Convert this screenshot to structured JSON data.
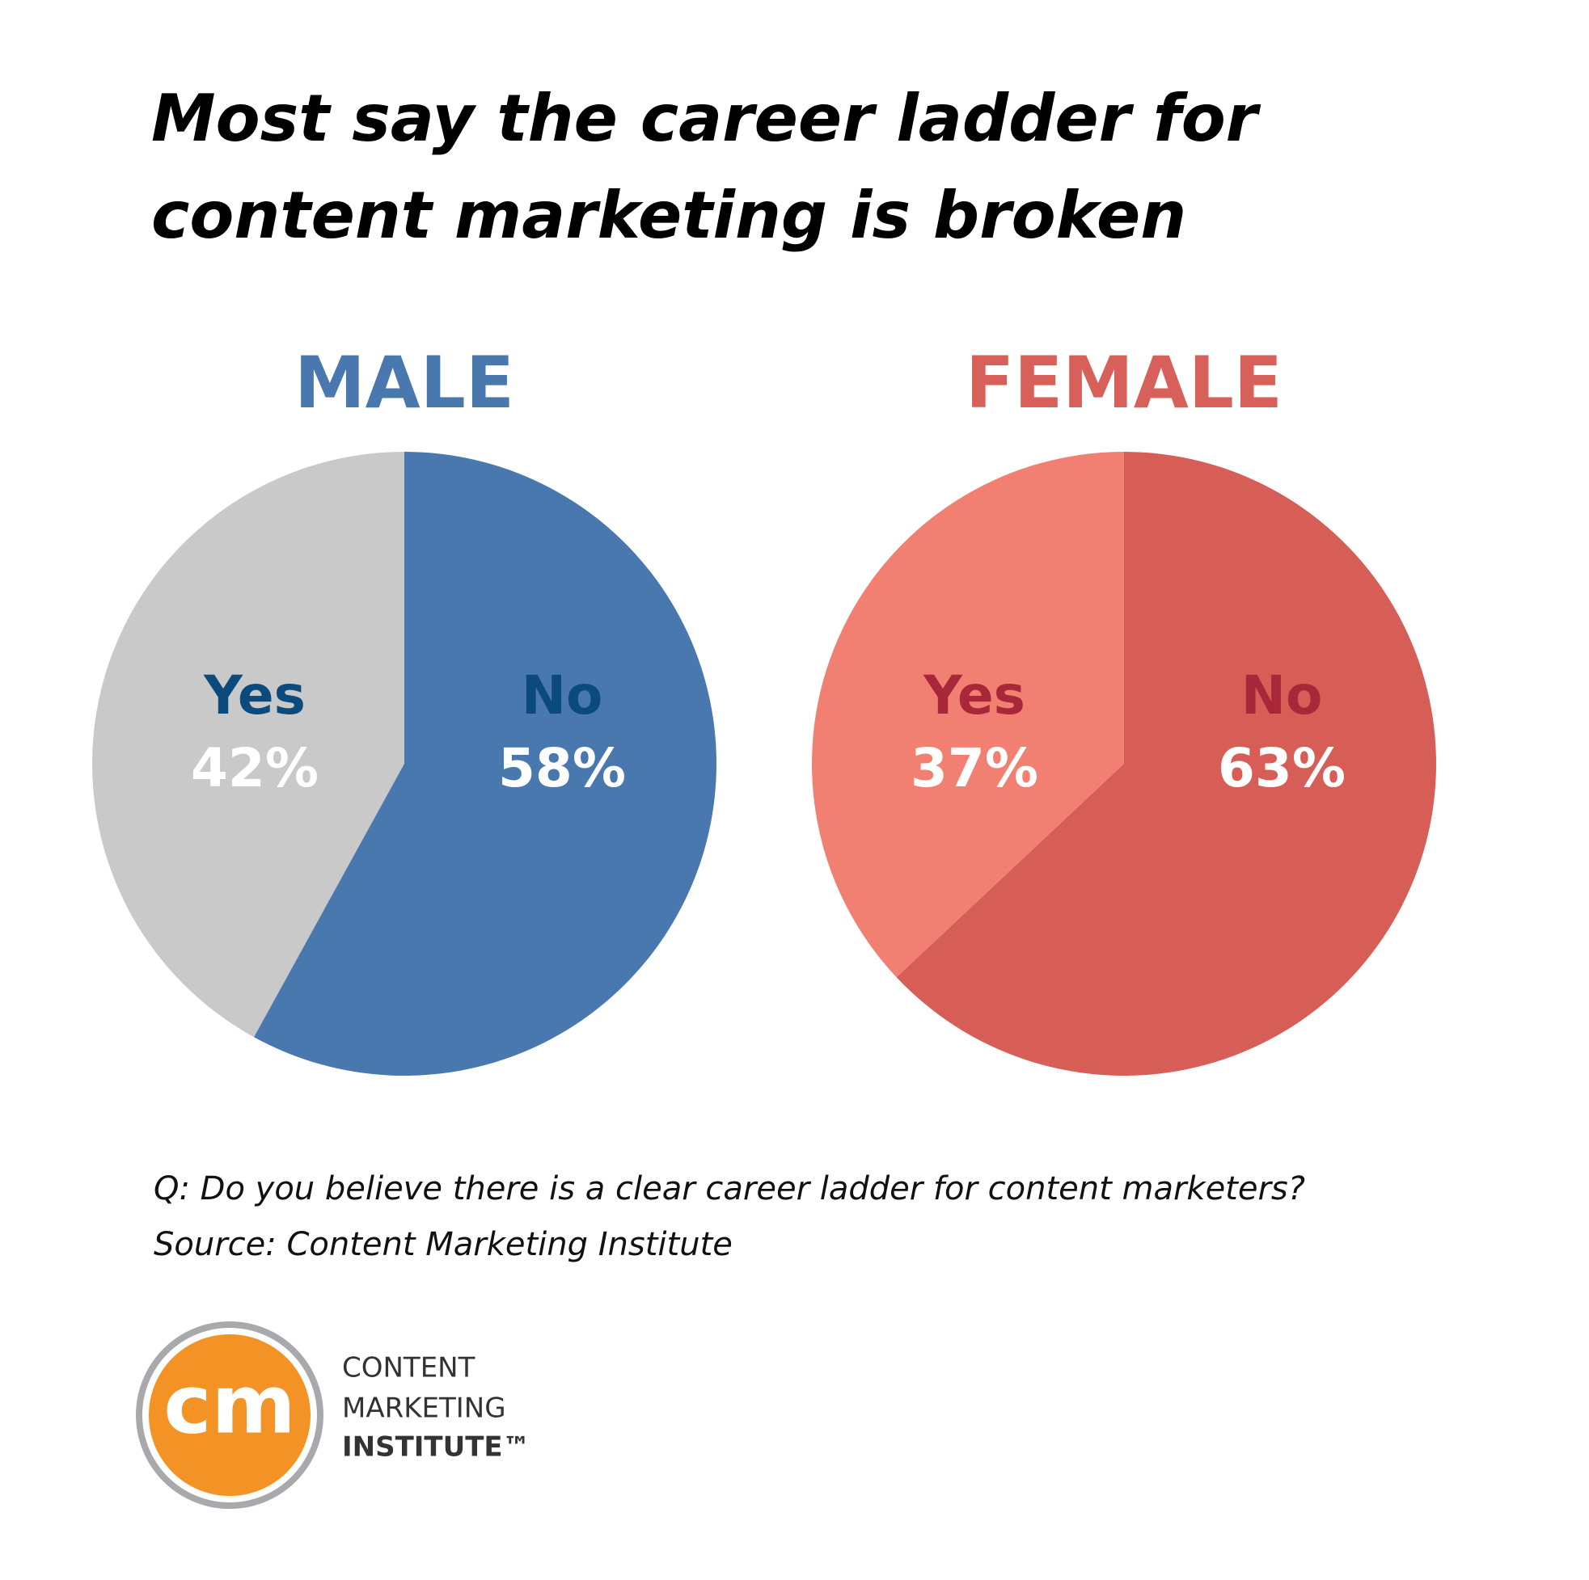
{
  "title_lines": [
    "Most say the career ladder for",
    "content marketing is broken"
  ],
  "chart_data": [
    {
      "type": "pie",
      "title": "MALE",
      "title_color": "#4878ae",
      "label_color": "#0b4a7c",
      "categories": [
        "Yes",
        "No"
      ],
      "values": [
        42,
        58
      ],
      "value_labels": [
        "42%",
        "58%"
      ],
      "colors": [
        "#c9c9c9",
        "#4878ae"
      ]
    },
    {
      "type": "pie",
      "title": "FEMALE",
      "title_color": "#d8605a",
      "label_color": "#a8283a",
      "categories": [
        "Yes",
        "No"
      ],
      "values": [
        37,
        63
      ],
      "value_labels": [
        "37%",
        "63%"
      ],
      "colors": [
        "#f28072",
        "#d75e57"
      ]
    }
  ],
  "notes": [
    "Q: Do you believe there is a clear career ladder for content marketers?",
    "Source: Content Marketing Institute"
  ],
  "logo": {
    "mark": "cm",
    "lines": [
      "CONTENT",
      "MARKETING",
      "INSTITUTE™"
    ]
  }
}
